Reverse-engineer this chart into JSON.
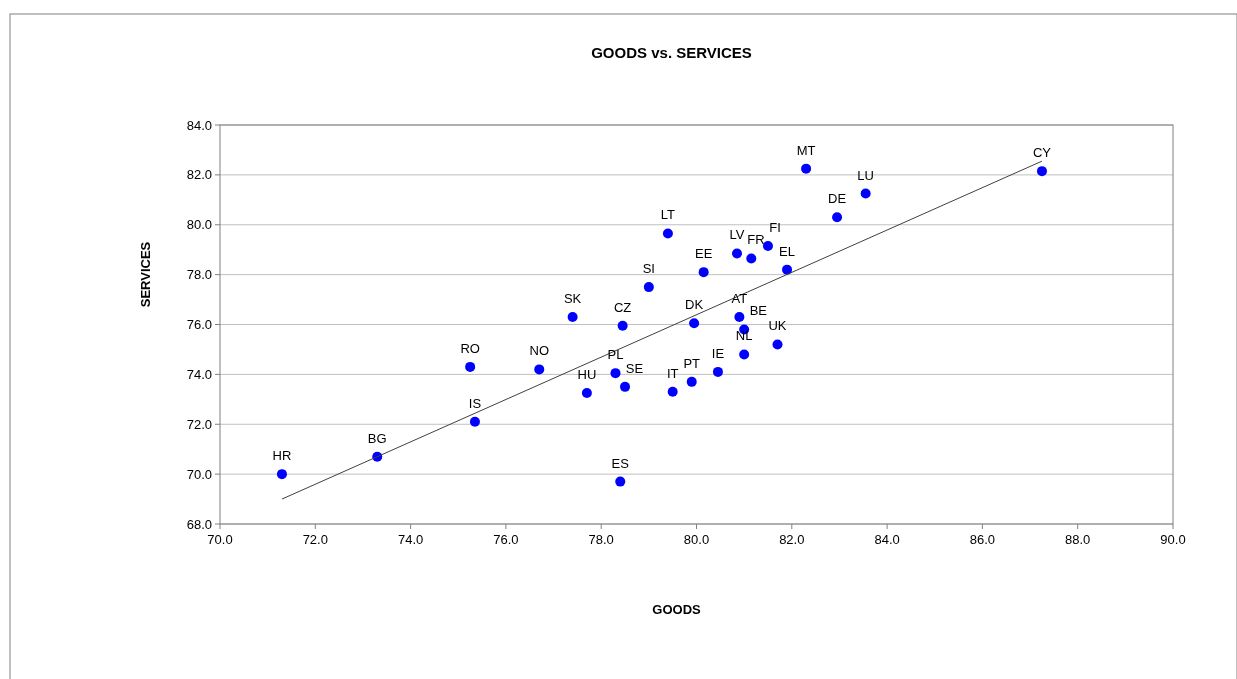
{
  "chart_data": {
    "type": "scatter",
    "title": "GOODS vs. SERVICES",
    "xlabel": "GOODS",
    "ylabel": "SERVICES",
    "xlim": [
      70,
      90
    ],
    "ylim": [
      68,
      84
    ],
    "xticks": [
      {
        "value": 70,
        "label": "70.0"
      },
      {
        "value": 72,
        "label": "72.0"
      },
      {
        "value": 74,
        "label": "74.0"
      },
      {
        "value": 76,
        "label": "76.0"
      },
      {
        "value": 78,
        "label": "78.0"
      },
      {
        "value": 80,
        "label": "80.0"
      },
      {
        "value": 82,
        "label": "82.0"
      },
      {
        "value": 84,
        "label": "84.0"
      },
      {
        "value": 86,
        "label": "86.0"
      },
      {
        "value": 88,
        "label": "88.0"
      },
      {
        "value": 90,
        "label": "90.0"
      }
    ],
    "yticks": [
      {
        "value": 68,
        "label": "68.0"
      },
      {
        "value": 70,
        "label": "70.0"
      },
      {
        "value": 72,
        "label": "72.0"
      },
      {
        "value": 74,
        "label": "74.0"
      },
      {
        "value": 76,
        "label": "76.0"
      },
      {
        "value": 78,
        "label": "78.0"
      },
      {
        "value": 80,
        "label": "80.0"
      },
      {
        "value": 82,
        "label": "82.0"
      },
      {
        "value": 84,
        "label": "84.0"
      }
    ],
    "grid": "y",
    "series": [
      {
        "marker": "circle",
        "color": "#0000ff",
        "x": [
          71.3,
          73.3,
          75.35,
          75.25,
          76.7,
          77.7,
          77.4,
          78.3,
          78.5,
          78.4,
          78.45,
          79.0,
          79.4,
          79.5,
          79.9,
          79.95,
          80.15,
          80.45,
          80.85,
          81.15,
          81.5,
          80.9,
          81.0,
          81.0,
          81.7,
          81.9,
          82.95,
          82.3,
          83.55,
          87.25
        ],
        "values": [
          70.0,
          70.7,
          72.1,
          74.3,
          74.2,
          73.25,
          76.3,
          74.05,
          73.5,
          69.7,
          75.95,
          77.5,
          79.65,
          73.3,
          73.7,
          76.05,
          78.1,
          74.1,
          78.85,
          78.65,
          79.15,
          76.3,
          75.8,
          74.8,
          75.2,
          78.2,
          80.3,
          82.25,
          81.25,
          82.15
        ]
      },
      {
        "type": "line",
        "color": "#404040",
        "x": [
          71.3,
          87.25
        ],
        "values": [
          69.0,
          82.55
        ]
      }
    ],
    "annotations": [
      {
        "text": "HR",
        "x": 71.3,
        "y": 70.0
      },
      {
        "text": "BG",
        "x": 73.3,
        "y": 70.7
      },
      {
        "text": "IS",
        "x": 75.35,
        "y": 72.1
      },
      {
        "text": "RO",
        "x": 75.25,
        "y": 74.3
      },
      {
        "text": "NO",
        "x": 76.7,
        "y": 74.2
      },
      {
        "text": "HU",
        "x": 77.7,
        "y": 73.25
      },
      {
        "text": "SK",
        "x": 77.4,
        "y": 76.3
      },
      {
        "text": "PL",
        "x": 78.3,
        "y": 74.05
      },
      {
        "text": "SE",
        "x": 78.5,
        "y": 73.5
      },
      {
        "text": "ES",
        "x": 78.4,
        "y": 69.7
      },
      {
        "text": "CZ",
        "x": 78.45,
        "y": 75.95
      },
      {
        "text": "SI",
        "x": 79.0,
        "y": 77.5
      },
      {
        "text": "LT",
        "x": 79.4,
        "y": 79.65
      },
      {
        "text": "IT",
        "x": 79.5,
        "y": 73.3
      },
      {
        "text": "PT",
        "x": 79.9,
        "y": 73.7
      },
      {
        "text": "DK",
        "x": 79.95,
        "y": 76.05
      },
      {
        "text": "EE",
        "x": 80.15,
        "y": 78.1
      },
      {
        "text": "IE",
        "x": 80.45,
        "y": 74.1
      },
      {
        "text": "LV",
        "x": 80.85,
        "y": 78.85
      },
      {
        "text": "FR",
        "x": 81.15,
        "y": 78.65
      },
      {
        "text": "FI",
        "x": 81.5,
        "y": 79.15
      },
      {
        "text": "AT",
        "x": 80.9,
        "y": 76.3
      },
      {
        "text": "BE",
        "x": 81.0,
        "y": 75.8
      },
      {
        "text": "NL",
        "x": 81.0,
        "y": 74.8
      },
      {
        "text": "UK",
        "x": 81.7,
        "y": 75.2
      },
      {
        "text": "EL",
        "x": 81.9,
        "y": 78.2
      },
      {
        "text": "DE",
        "x": 82.95,
        "y": 80.3
      },
      {
        "text": "MT",
        "x": 82.3,
        "y": 82.25
      },
      {
        "text": "LU",
        "x": 83.55,
        "y": 81.25
      },
      {
        "text": "CY",
        "x": 87.25,
        "y": 82.15
      }
    ]
  }
}
